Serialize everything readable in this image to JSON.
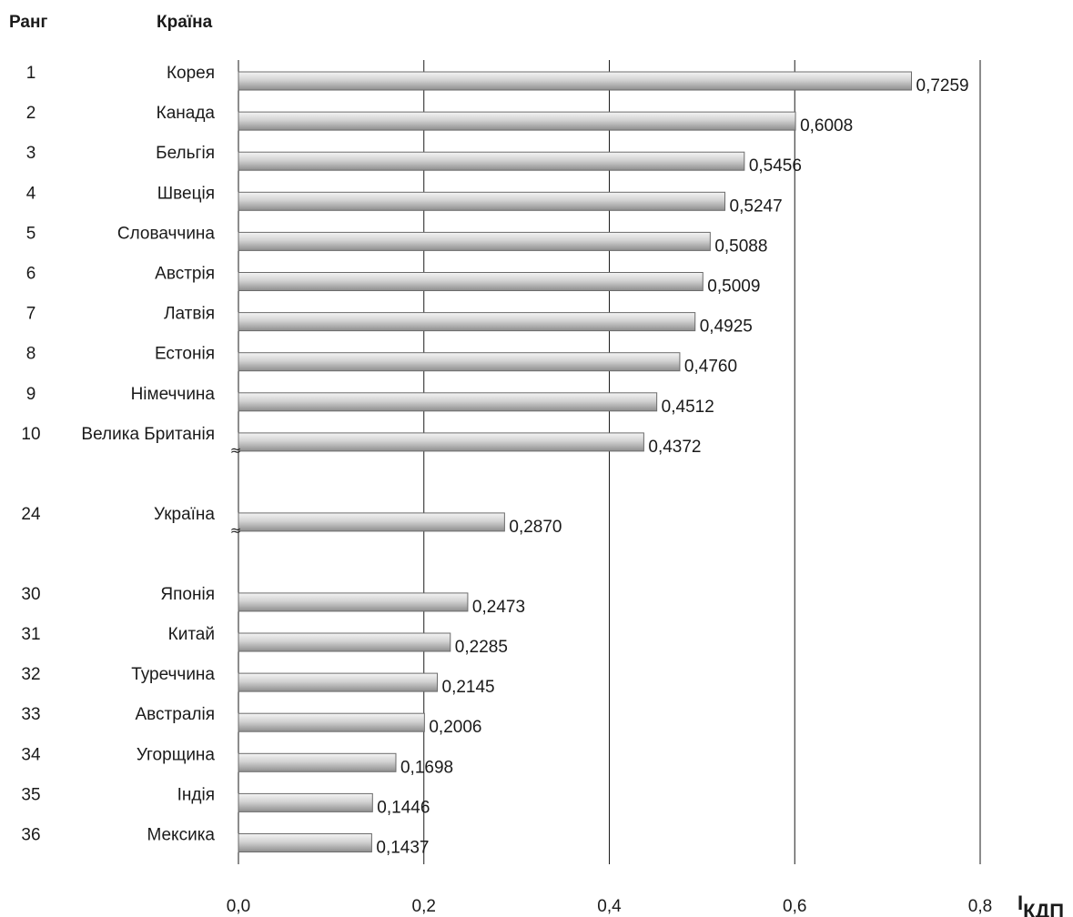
{
  "chart_data": {
    "type": "bar",
    "orientation": "horizontal",
    "header": {
      "rank": "Ранг",
      "country": "Країна"
    },
    "xlabel": "I",
    "xlabel_sub": "КДП",
    "xlim": [
      0,
      0.8
    ],
    "xticks": [
      "0,0",
      "0,2",
      "0,4",
      "0,6",
      "0,8"
    ],
    "grid": "vertical",
    "break_marker": "≈",
    "groups": [
      {
        "rows": [
          {
            "rank": "1",
            "country": "Корея",
            "value": 0.7259,
            "label": "0,7259"
          },
          {
            "rank": "2",
            "country": "Канада",
            "value": 0.6008,
            "label": "0,6008"
          },
          {
            "rank": "3",
            "country": "Бельгія",
            "value": 0.5456,
            "label": "0,5456"
          },
          {
            "rank": "4",
            "country": "Швеція",
            "value": 0.5247,
            "label": "0,5247"
          },
          {
            "rank": "5",
            "country": "Словаччина",
            "value": 0.5088,
            "label": "0,5088"
          },
          {
            "rank": "6",
            "country": "Австрія",
            "value": 0.5009,
            "label": "0,5009"
          },
          {
            "rank": "7",
            "country": "Латвія",
            "value": 0.4925,
            "label": "0,4925"
          },
          {
            "rank": "8",
            "country": "Естонія",
            "value": 0.476,
            "label": "0,4760"
          },
          {
            "rank": "9",
            "country": "Німеччина",
            "value": 0.4512,
            "label": "0,4512"
          },
          {
            "rank": "10",
            "country": "Велика Британія",
            "value": 0.4372,
            "label": "0,4372"
          }
        ]
      },
      {
        "rows": [
          {
            "rank": "24",
            "country": "Україна",
            "value": 0.287,
            "label": "0,2870"
          }
        ]
      },
      {
        "rows": [
          {
            "rank": "30",
            "country": "Японія",
            "value": 0.2473,
            "label": "0,2473"
          },
          {
            "rank": "31",
            "country": "Китай",
            "value": 0.2285,
            "label": "0,2285"
          },
          {
            "rank": "32",
            "country": "Туреччина",
            "value": 0.2145,
            "label": "0,2145"
          },
          {
            "rank": "33",
            "country": "Австралія",
            "value": 0.2006,
            "label": "0,2006"
          },
          {
            "rank": "34",
            "country": "Угорщина",
            "value": 0.1698,
            "label": "0,1698"
          },
          {
            "rank": "35",
            "country": "Індія",
            "value": 0.1446,
            "label": "0,1446"
          },
          {
            "rank": "36",
            "country": "Мексика",
            "value": 0.1437,
            "label": "0,1437"
          }
        ]
      }
    ],
    "colors": {
      "bar_light": "#f2f2f2",
      "bar_mid": "#bdbdbd",
      "bar_dark": "#8c8c8c",
      "grid": "#1a1a1a",
      "text": "#1a1a1a"
    }
  }
}
